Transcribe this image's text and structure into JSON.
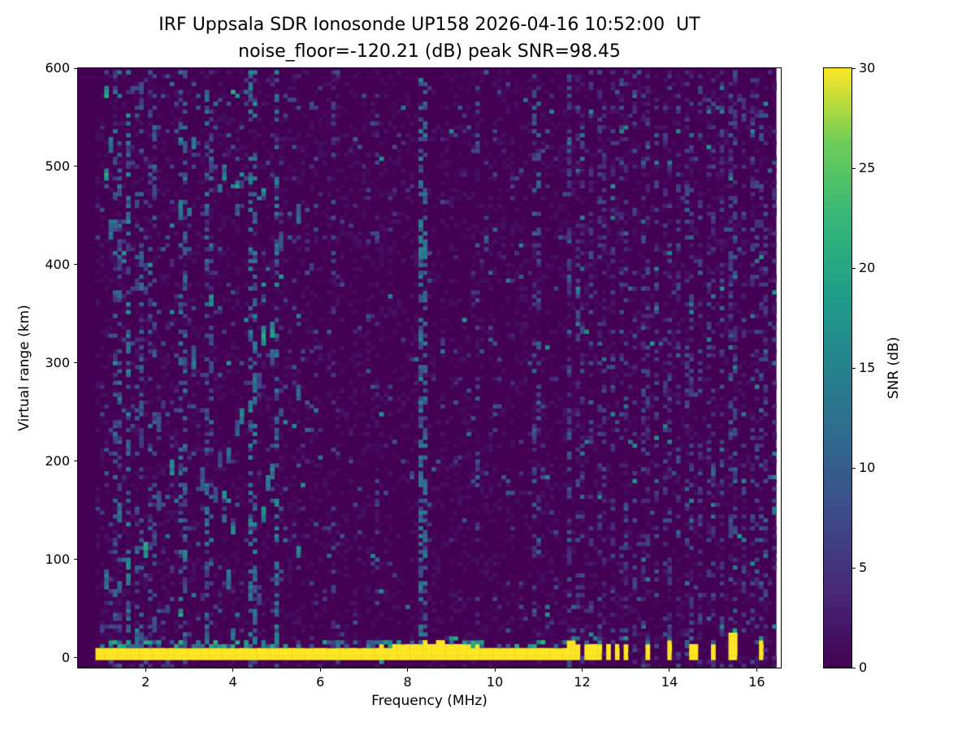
{
  "chart_data": {
    "type": "heatmap",
    "title": "IRF Uppsala SDR Ionosonde UP158 2026-04-16 10:52:00  UT",
    "subtitle": "noise_floor=-120.21 (dB) peak SNR=98.45",
    "station": "UP158",
    "timestamp_ut": "2026-04-16 10:52:00",
    "noise_floor_db": -120.21,
    "peak_snr_db": 98.45,
    "xlabel": "Frequency (MHz)",
    "ylabel": "Virtual range (km)",
    "colorbar_label": "SNR (dB)",
    "xlim": [
      0.45,
      16.55
    ],
    "ylim": [
      -10,
      600
    ],
    "xticks": [
      2,
      4,
      6,
      8,
      10,
      12,
      14,
      16
    ],
    "yticks": [
      0,
      100,
      200,
      300,
      400,
      500,
      600
    ],
    "colorbar_ticks": [
      0,
      5,
      10,
      15,
      20,
      25,
      30
    ],
    "snr_range": [
      0,
      30
    ],
    "freq_start_mhz": 0.9,
    "freq_end_mhz": 16.45,
    "freq_step_mhz": 0.1,
    "range_step_km": 4,
    "colormap": {
      "name": "viridis",
      "stops": [
        [
          0.0,
          "#440154"
        ],
        [
          0.125,
          "#482878"
        ],
        [
          0.25,
          "#3e4a89"
        ],
        [
          0.375,
          "#31688e"
        ],
        [
          0.5,
          "#26828e"
        ],
        [
          0.625,
          "#1f9e89"
        ],
        [
          0.75,
          "#35b779"
        ],
        [
          0.875,
          "#6dcd59"
        ],
        [
          1.0,
          "#fde725"
        ]
      ]
    },
    "features": {
      "ground_return": {
        "f_start": 0.9,
        "f_end": 11.62,
        "km_min": -3,
        "base_height_km": 10,
        "hump_center_mhz": 8.6,
        "hump_extra_km": 7,
        "hump_width_mhz": 0.8,
        "snr_db": 30
      },
      "dashed_ground_returns": [
        {
          "f": 11.75,
          "h": 16,
          "w": 1
        },
        {
          "f": 11.9,
          "h": 15,
          "w": 1
        },
        {
          "f": 12.08,
          "h": 14,
          "w": 1
        },
        {
          "f": 12.25,
          "h": 14,
          "w": 1
        },
        {
          "f": 12.42,
          "h": 13,
          "w": 1
        },
        {
          "f": 12.6,
          "h": 13,
          "w": 1
        },
        {
          "f": 12.78,
          "h": 12,
          "w": 1
        },
        {
          "f": 13.0,
          "h": 14,
          "w": 1
        },
        {
          "f": 13.5,
          "h": 15,
          "w": 1
        },
        {
          "f": 14.0,
          "h": 17,
          "w": 1
        },
        {
          "f": 14.55,
          "h": 14,
          "w": 1
        },
        {
          "f": 15.0,
          "h": 12,
          "w": 1
        },
        {
          "f": 15.45,
          "h": 26,
          "w": 2
        },
        {
          "f": 16.1,
          "h": 17,
          "w": 1
        }
      ],
      "interference_lines": [
        {
          "f": 1.35,
          "density": 0.3,
          "snr": [
            4,
            14
          ]
        },
        {
          "f": 1.62,
          "density": 0.4,
          "snr": [
            5,
            18
          ]
        },
        {
          "f": 1.85,
          "density": 0.28,
          "snr": [
            4,
            12
          ]
        },
        {
          "f": 2.15,
          "density": 0.22,
          "snr": [
            4,
            12
          ]
        },
        {
          "f": 2.85,
          "density": 0.28,
          "snr": [
            4,
            14
          ]
        },
        {
          "f": 3.45,
          "density": 0.28,
          "snr": [
            4,
            14
          ]
        },
        {
          "f": 4.45,
          "density": 0.32,
          "snr": [
            5,
            16
          ]
        },
        {
          "f": 5.0,
          "density": 0.35,
          "snr": [
            5,
            16
          ]
        },
        {
          "f": 6.3,
          "density": 0.12,
          "snr": [
            3,
            9
          ]
        },
        {
          "f": 7.3,
          "density": 0.1,
          "snr": [
            3,
            8
          ]
        },
        {
          "f": 8.3,
          "density": 0.45,
          "snr": [
            6,
            16
          ]
        },
        {
          "f": 8.4,
          "density": 0.4,
          "snr": [
            6,
            15
          ]
        },
        {
          "f": 9.6,
          "density": 0.18,
          "snr": [
            3,
            10
          ]
        },
        {
          "f": 10.95,
          "density": 0.22,
          "snr": [
            3,
            11
          ]
        },
        {
          "f": 11.7,
          "density": 0.25,
          "snr": [
            3,
            10
          ]
        },
        {
          "f": 15.45,
          "density": 0.18,
          "snr": [
            3,
            10
          ]
        },
        {
          "f": 16.1,
          "density": 0.15,
          "snr": [
            3,
            10
          ]
        }
      ],
      "striped_band": {
        "f_start": 11.7,
        "f_end": 16.45,
        "spacing_mhz": 0.25,
        "density": 0.22,
        "snr": [
          2,
          8
        ]
      },
      "noise_speckle": {
        "low_freq_density": 0.05,
        "mid_freq_density": 0.022,
        "high_freq_density": 0.012,
        "snr": [
          3,
          9
        ]
      },
      "bright_speckle_density": 0.004
    }
  }
}
